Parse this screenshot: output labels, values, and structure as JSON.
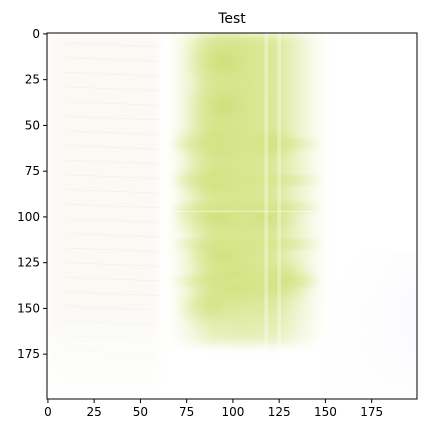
{
  "chart_data": {
    "type": "heatmap",
    "title": "Test",
    "xlabel": "",
    "ylabel": "",
    "image_size": [
      200,
      200
    ],
    "xlim": [
      -0.5,
      199.5
    ],
    "ylim": [
      199.5,
      -0.5
    ],
    "y_inverted": true,
    "x_ticks": [
      0,
      25,
      50,
      75,
      100,
      125,
      150,
      175
    ],
    "y_ticks": [
      0,
      25,
      50,
      75,
      100,
      125,
      150,
      175
    ],
    "grid": false,
    "colors": {
      "background": "#ffffff",
      "highlight": "#d6e58a",
      "cool_tint": "#f1f0fb",
      "warm_tint": "#f3eee2"
    },
    "description_of_values": "Pale white field with a yellow-green band roughly x=65–150 and y=0–170, strongest near x=80–130, with horizontal streak structure near y=60, 80, 95, 115, 135 and vertical streaks near x=118 and x=125.",
    "vertical_band": {
      "x_start": 65,
      "x_end": 150,
      "y_start": 0,
      "y_end": 170,
      "peak_x": [
        80,
        130
      ]
    },
    "horizontal_streaks_y": [
      60,
      80,
      95,
      115,
      135
    ],
    "vertical_streaks_x": [
      118,
      125
    ],
    "faint_background_strokes": true
  }
}
